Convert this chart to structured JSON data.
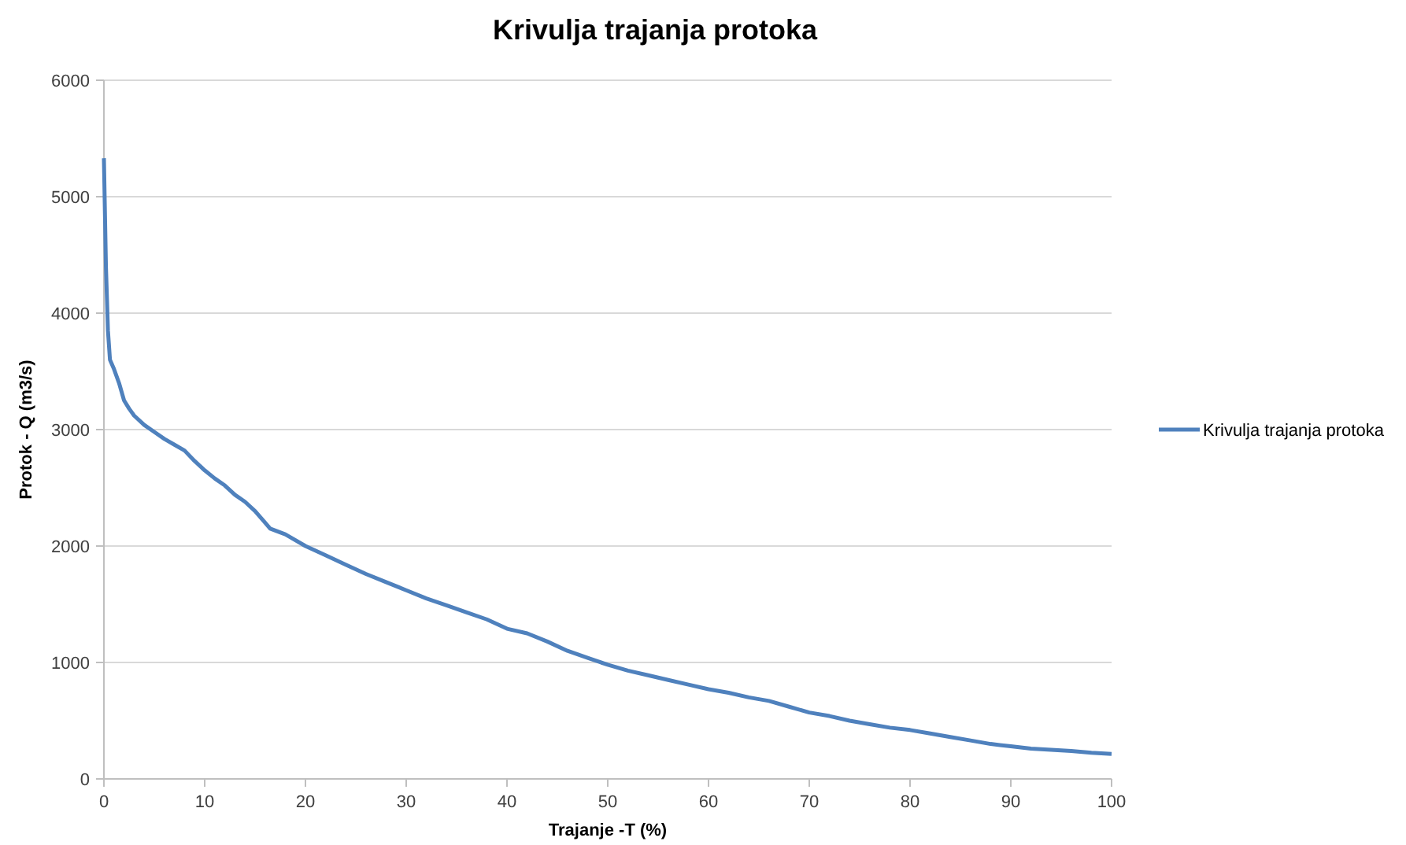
{
  "chart_data": {
    "type": "line",
    "title": "Krivulja trajanja protoka",
    "xlabel": "Trajanje -T (%)",
    "ylabel": "Protok  - Q (m3/s)",
    "xlim": [
      0,
      100
    ],
    "xticks": [
      0,
      10,
      20,
      30,
      40,
      50,
      60,
      70,
      80,
      90,
      100
    ],
    "ylim": [
      0,
      6000
    ],
    "yticks": [
      0,
      1000,
      2000,
      3000,
      4000,
      5000,
      6000
    ],
    "grid": "y",
    "legend": "right",
    "marker": "none",
    "line_style": "solid",
    "series": [
      {
        "name": "Krivulja trajanja protoka",
        "color": "#4f81bd",
        "x": [
          0,
          0.2,
          0.4,
          0.6,
          1,
          1.5,
          2,
          2.5,
          3,
          4,
          5,
          6,
          7,
          8,
          9,
          10,
          11,
          12,
          13,
          14,
          15,
          16,
          16.5,
          18,
          20,
          22,
          24,
          26,
          28,
          30,
          32,
          34,
          36,
          38,
          40,
          42,
          44,
          46,
          48,
          50,
          52,
          54,
          56,
          58,
          60,
          62,
          64,
          66,
          68,
          70,
          72,
          74,
          76,
          78,
          80,
          82,
          84,
          86,
          88,
          90,
          92,
          94,
          96,
          98,
          100
        ],
        "values": [
          5330,
          4400,
          3850,
          3600,
          3520,
          3400,
          3250,
          3180,
          3120,
          3040,
          2980,
          2920,
          2870,
          2820,
          2730,
          2650,
          2580,
          2520,
          2440,
          2380,
          2300,
          2200,
          2150,
          2100,
          2000,
          1920,
          1840,
          1760,
          1690,
          1620,
          1550,
          1490,
          1430,
          1370,
          1290,
          1250,
          1180,
          1100,
          1040,
          980,
          930,
          890,
          850,
          810,
          770,
          740,
          700,
          670,
          620,
          570,
          540,
          500,
          470,
          440,
          420,
          390,
          360,
          330,
          300,
          280,
          260,
          250,
          240,
          225,
          215
        ]
      }
    ]
  }
}
